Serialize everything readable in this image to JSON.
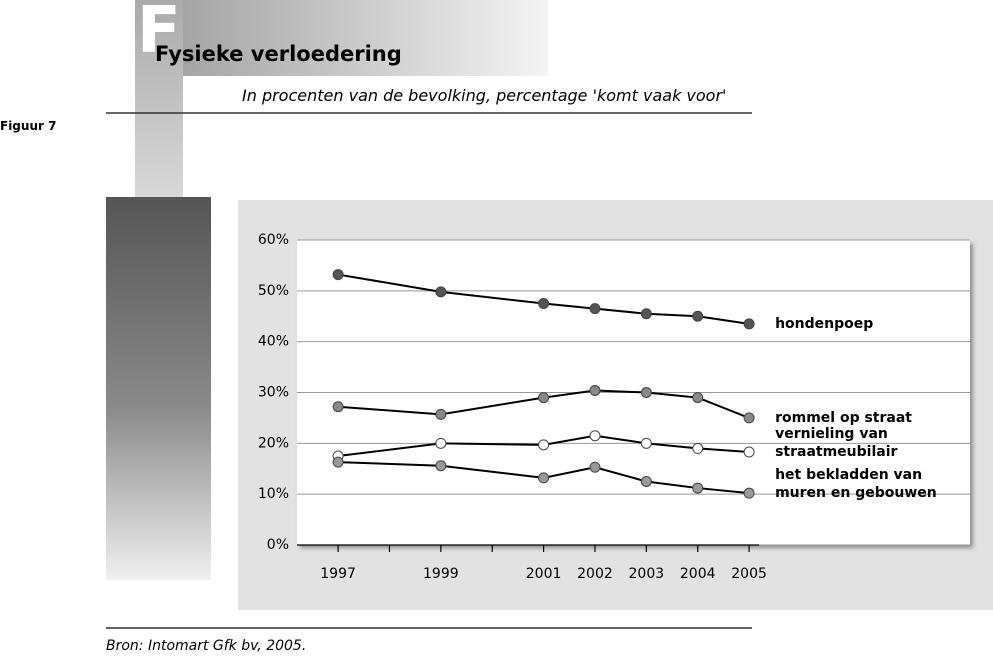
{
  "figure_label": "Figuur 7",
  "initial": "F",
  "title": "Fysieke verloedering",
  "subtitle": "In procenten van de bevolking, percentage 'komt vaak voor'",
  "source": "Bron: Intomart Gfk bv, 2005.",
  "chart_data": {
    "type": "line",
    "x": [
      1997,
      1999,
      2001,
      2002,
      2003,
      2004,
      2005
    ],
    "xlim": [
      1996.2,
      2009.3
    ],
    "xticks": [
      1997,
      1999,
      2001,
      2002,
      2003,
      2004,
      2005
    ],
    "minor_xticks": [
      1998,
      2000
    ],
    "ylim": [
      0,
      60
    ],
    "yticks": [
      {
        "value": 0,
        "label": "0%"
      },
      {
        "value": 10,
        "label": "10%"
      },
      {
        "value": 20,
        "label": "20%"
      },
      {
        "value": 30,
        "label": "30%"
      },
      {
        "value": 40,
        "label": "40%"
      },
      {
        "value": 50,
        "label": "50%"
      },
      {
        "value": 60,
        "label": "60%"
      }
    ],
    "grid": true,
    "line_color": "#000000",
    "series": [
      {
        "name": "hondenpoep",
        "color": "#555555",
        "values": [
          53.2,
          49.8,
          47.5,
          46.5,
          45.5,
          45,
          43.5
        ]
      },
      {
        "name": "rommel op straat",
        "color": "#888888",
        "values": [
          27.2,
          25.7,
          29,
          30.4,
          30,
          29,
          25
        ]
      },
      {
        "name": "vernieling van straatmeubilair",
        "color": "#ffffff",
        "values": [
          17.5,
          20,
          19.7,
          21.5,
          20,
          19,
          18.3
        ]
      },
      {
        "name": "het bekladden van muren en gebouwen",
        "color": "#999999",
        "values": [
          16.3,
          15.6,
          13.2,
          15.3,
          12.5,
          11.2,
          10.2
        ]
      }
    ]
  }
}
